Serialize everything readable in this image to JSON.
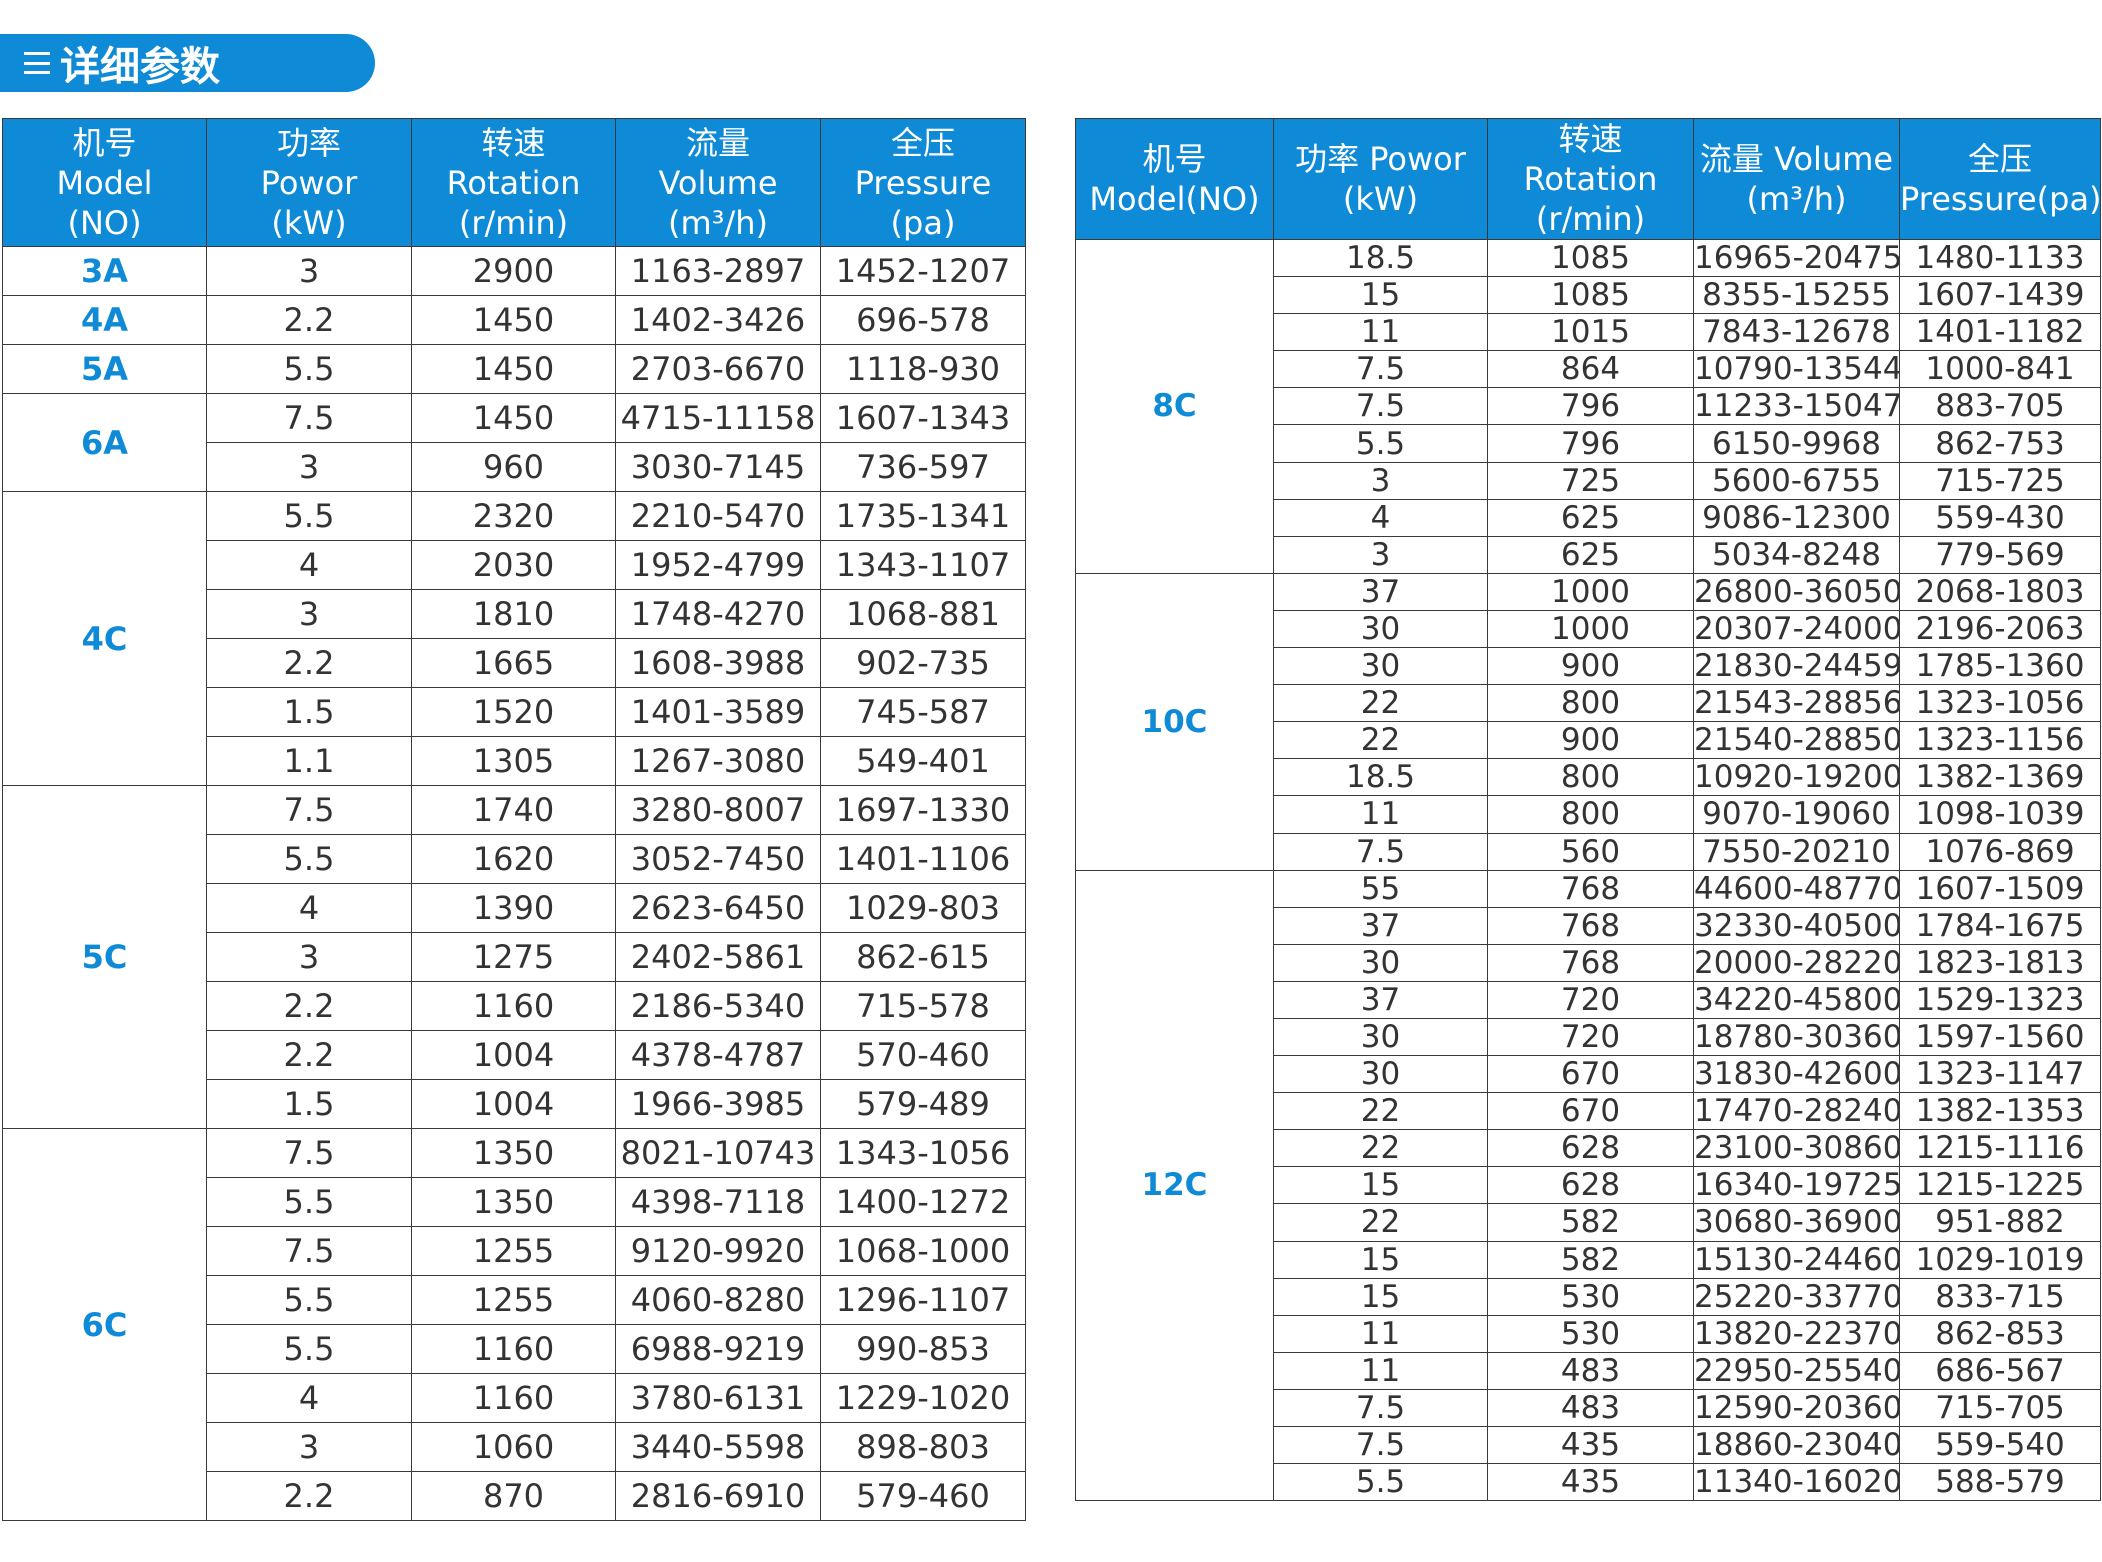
{
  "header": {
    "title": "详细参数"
  },
  "left_table": {
    "headers": [
      [
        "机号",
        "Model",
        "(NO)"
      ],
      [
        "功率",
        "Powor",
        "(kW)"
      ],
      [
        "转速",
        "Rotation",
        "(r/min)"
      ],
      [
        "流量",
        "Volume",
        "(m³/h)"
      ],
      [
        "全压",
        "Pressure",
        "(pa)"
      ]
    ],
    "groups": [
      {
        "model": "3A",
        "rows": [
          [
            "3",
            "2900",
            "1163-2897",
            "1452-1207"
          ]
        ]
      },
      {
        "model": "4A",
        "rows": [
          [
            "2.2",
            "1450",
            "1402-3426",
            "696-578"
          ]
        ]
      },
      {
        "model": "5A",
        "rows": [
          [
            "5.5",
            "1450",
            "2703-6670",
            "1118-930"
          ]
        ]
      },
      {
        "model": "6A",
        "rows": [
          [
            "7.5",
            "1450",
            "4715-11158",
            "1607-1343"
          ],
          [
            "3",
            "960",
            "3030-7145",
            "736-597"
          ]
        ]
      },
      {
        "model": "4C",
        "rows": [
          [
            "5.5",
            "2320",
            "2210-5470",
            "1735-1341"
          ],
          [
            "4",
            "2030",
            "1952-4799",
            "1343-1107"
          ],
          [
            "3",
            "1810",
            "1748-4270",
            "1068-881"
          ],
          [
            "2.2",
            "1665",
            "1608-3988",
            "902-735"
          ],
          [
            "1.5",
            "1520",
            "1401-3589",
            "745-587"
          ],
          [
            "1.1",
            "1305",
            "1267-3080",
            "549-401"
          ]
        ]
      },
      {
        "model": "5C",
        "rows": [
          [
            "7.5",
            "1740",
            "3280-8007",
            "1697-1330"
          ],
          [
            "5.5",
            "1620",
            "3052-7450",
            "1401-1106"
          ],
          [
            "4",
            "1390",
            "2623-6450",
            "1029-803"
          ],
          [
            "3",
            "1275",
            "2402-5861",
            "862-615"
          ],
          [
            "2.2",
            "1160",
            "2186-5340",
            "715-578"
          ],
          [
            "2.2",
            "1004",
            "4378-4787",
            "570-460"
          ],
          [
            "1.5",
            "1004",
            "1966-3985",
            "579-489"
          ]
        ]
      },
      {
        "model": "6C",
        "rows": [
          [
            "7.5",
            "1350",
            "8021-10743",
            "1343-1056"
          ],
          [
            "5.5",
            "1350",
            "4398-7118",
            "1400-1272"
          ],
          [
            "7.5",
            "1255",
            "9120-9920",
            "1068-1000"
          ],
          [
            "5.5",
            "1255",
            "4060-8280",
            "1296-1107"
          ],
          [
            "5.5",
            "1160",
            "6988-9219",
            "990-853"
          ],
          [
            "4",
            "1160",
            "3780-6131",
            "1229-1020"
          ],
          [
            "3",
            "1060",
            "3440-5598",
            "898-803"
          ],
          [
            "2.2",
            "870",
            "2816-6910",
            "579-460"
          ]
        ]
      }
    ]
  },
  "right_table": {
    "headers": [
      [
        "机号",
        "Model(NO)"
      ],
      [
        "功率 Powor",
        "(kW)"
      ],
      [
        "转速",
        "Rotation",
        "(r/min)"
      ],
      [
        "流量 Volume",
        "(m³/h)"
      ],
      [
        "全压",
        "Pressure(pa)"
      ]
    ],
    "groups": [
      {
        "model": "8C",
        "rows": [
          [
            "18.5",
            "1085",
            "16965-20475",
            "1480-1133"
          ],
          [
            "15",
            "1085",
            "8355-15255",
            "1607-1439"
          ],
          [
            "11",
            "1015",
            "7843-12678",
            "1401-1182"
          ],
          [
            "7.5",
            "864",
            "10790-13544",
            "1000-841"
          ],
          [
            "7.5",
            "796",
            "11233-15047",
            "883-705"
          ],
          [
            "5.5",
            "796",
            "6150-9968",
            "862-753"
          ],
          [
            "3",
            "725",
            "5600-6755",
            "715-725"
          ],
          [
            "4",
            "625",
            "9086-12300",
            "559-430"
          ],
          [
            "3",
            "625",
            "5034-8248",
            "779-569"
          ]
        ]
      },
      {
        "model": "10C",
        "rows": [
          [
            "37",
            "1000",
            "26800-36050",
            "2068-1803"
          ],
          [
            "30",
            "1000",
            "20307-24000",
            "2196-2063"
          ],
          [
            "30",
            "900",
            "21830-24459",
            "1785-1360"
          ],
          [
            "22",
            "800",
            "21543-28856",
            "1323-1056"
          ],
          [
            "22",
            "900",
            "21540-28850",
            "1323-1156"
          ],
          [
            "18.5",
            "800",
            "10920-19200",
            "1382-1369"
          ],
          [
            "11",
            "800",
            "9070-19060",
            "1098-1039"
          ],
          [
            "7.5",
            "560",
            "7550-20210",
            "1076-869"
          ]
        ]
      },
      {
        "model": "12C",
        "rows": [
          [
            "55",
            "768",
            "44600-48770",
            "1607-1509"
          ],
          [
            "37",
            "768",
            "32330-40500",
            "1784-1675"
          ],
          [
            "30",
            "768",
            "20000-28220",
            "1823-1813"
          ],
          [
            "37",
            "720",
            "34220-45800",
            "1529-1323"
          ],
          [
            "30",
            "720",
            "18780-30360",
            "1597-1560"
          ],
          [
            "30",
            "670",
            "31830-42600",
            "1323-1147"
          ],
          [
            "22",
            "670",
            "17470-28240",
            "1382-1353"
          ],
          [
            "22",
            "628",
            "23100-30860",
            "1215-1116"
          ],
          [
            "15",
            "628",
            "16340-19725",
            "1215-1225"
          ],
          [
            "22",
            "582",
            "30680-36900",
            "951-882"
          ],
          [
            "15",
            "582",
            "15130-24460",
            "1029-1019"
          ],
          [
            "15",
            "530",
            "25220-33770",
            "833-715"
          ],
          [
            "11",
            "530",
            "13820-22370",
            "862-853"
          ],
          [
            "11",
            "483",
            "22950-25540",
            "686-567"
          ],
          [
            "7.5",
            "483",
            "12590-20360",
            "715-705"
          ],
          [
            "7.5",
            "435",
            "18860-23040",
            "559-540"
          ],
          [
            "5.5",
            "435",
            "11340-16020",
            "588-579"
          ]
        ]
      }
    ]
  }
}
